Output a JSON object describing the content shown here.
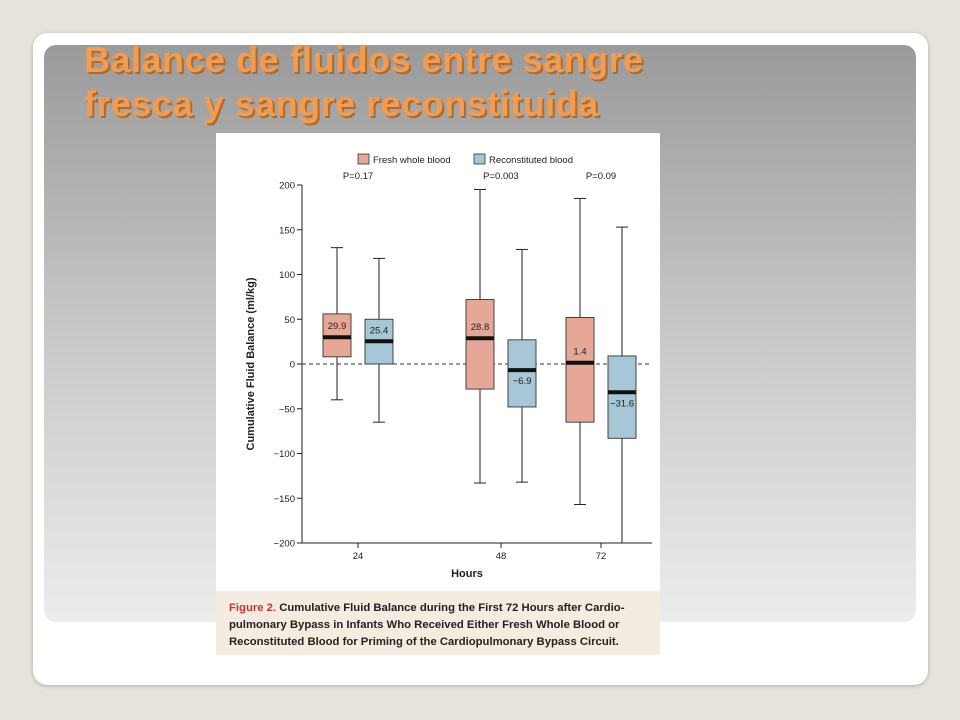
{
  "slide": {
    "title": "Balance de fluidos entre sangre\nfresca y sangre reconstituida"
  },
  "colors": {
    "fresh": "#e6a797",
    "reconstituted": "#a7c7d6",
    "title": "#f39b4e",
    "caption_bg": "#f5ece1",
    "caption_lead": "#c8352e"
  },
  "caption": {
    "lead": "Figure 2.",
    "text": " Cumulative Fluid Balance during the First 72 Hours after Cardio-pulmonary Bypass in Infants Who Received Either Fresh Whole Blood or Reconstituted Blood for Priming of the Cardiopulmonary Bypass Circuit."
  },
  "chart_data": {
    "type": "boxplot",
    "xlabel": "Hours",
    "ylabel": "Cumulative Fluid Balance (ml/kg)",
    "ylim": [
      -200,
      200
    ],
    "yticks": [
      200,
      150,
      100,
      50,
      0,
      -50,
      -100,
      -150,
      -200
    ],
    "ytick_labels": [
      "200",
      "150",
      "100",
      "50",
      "0",
      "−50",
      "−100",
      "−150",
      "−200"
    ],
    "categories": [
      "24",
      "48",
      "72"
    ],
    "pvalues": [
      "P=0.17",
      "P=0.003",
      "P=0.09"
    ],
    "legend": [
      "Fresh whole blood",
      "Reconstituted blood"
    ],
    "legend_position": "top",
    "reference_line": 0,
    "series": [
      {
        "name": "Fresh whole blood",
        "boxes": [
          {
            "min": -40,
            "q1": 8,
            "median": 29.9,
            "q3": 56,
            "max": 130,
            "label": "29.9"
          },
          {
            "min": -133,
            "q1": -28,
            "median": 28.8,
            "q3": 72,
            "max": 195,
            "label": "28.8"
          },
          {
            "min": -157,
            "q1": -65,
            "median": 1.4,
            "q3": 52,
            "max": 185,
            "label": "1.4"
          }
        ]
      },
      {
        "name": "Reconstituted blood",
        "boxes": [
          {
            "min": -65,
            "q1": 0,
            "median": 25.4,
            "q3": 50,
            "max": 118,
            "label": "25.4"
          },
          {
            "min": -132,
            "q1": -48,
            "median": -6.9,
            "q3": 27,
            "max": 128,
            "label": "−6.9"
          },
          {
            "min": -200,
            "q1": -83,
            "median": -31.6,
            "q3": 9,
            "max": 153,
            "label": "−31.6"
          }
        ]
      }
    ]
  }
}
